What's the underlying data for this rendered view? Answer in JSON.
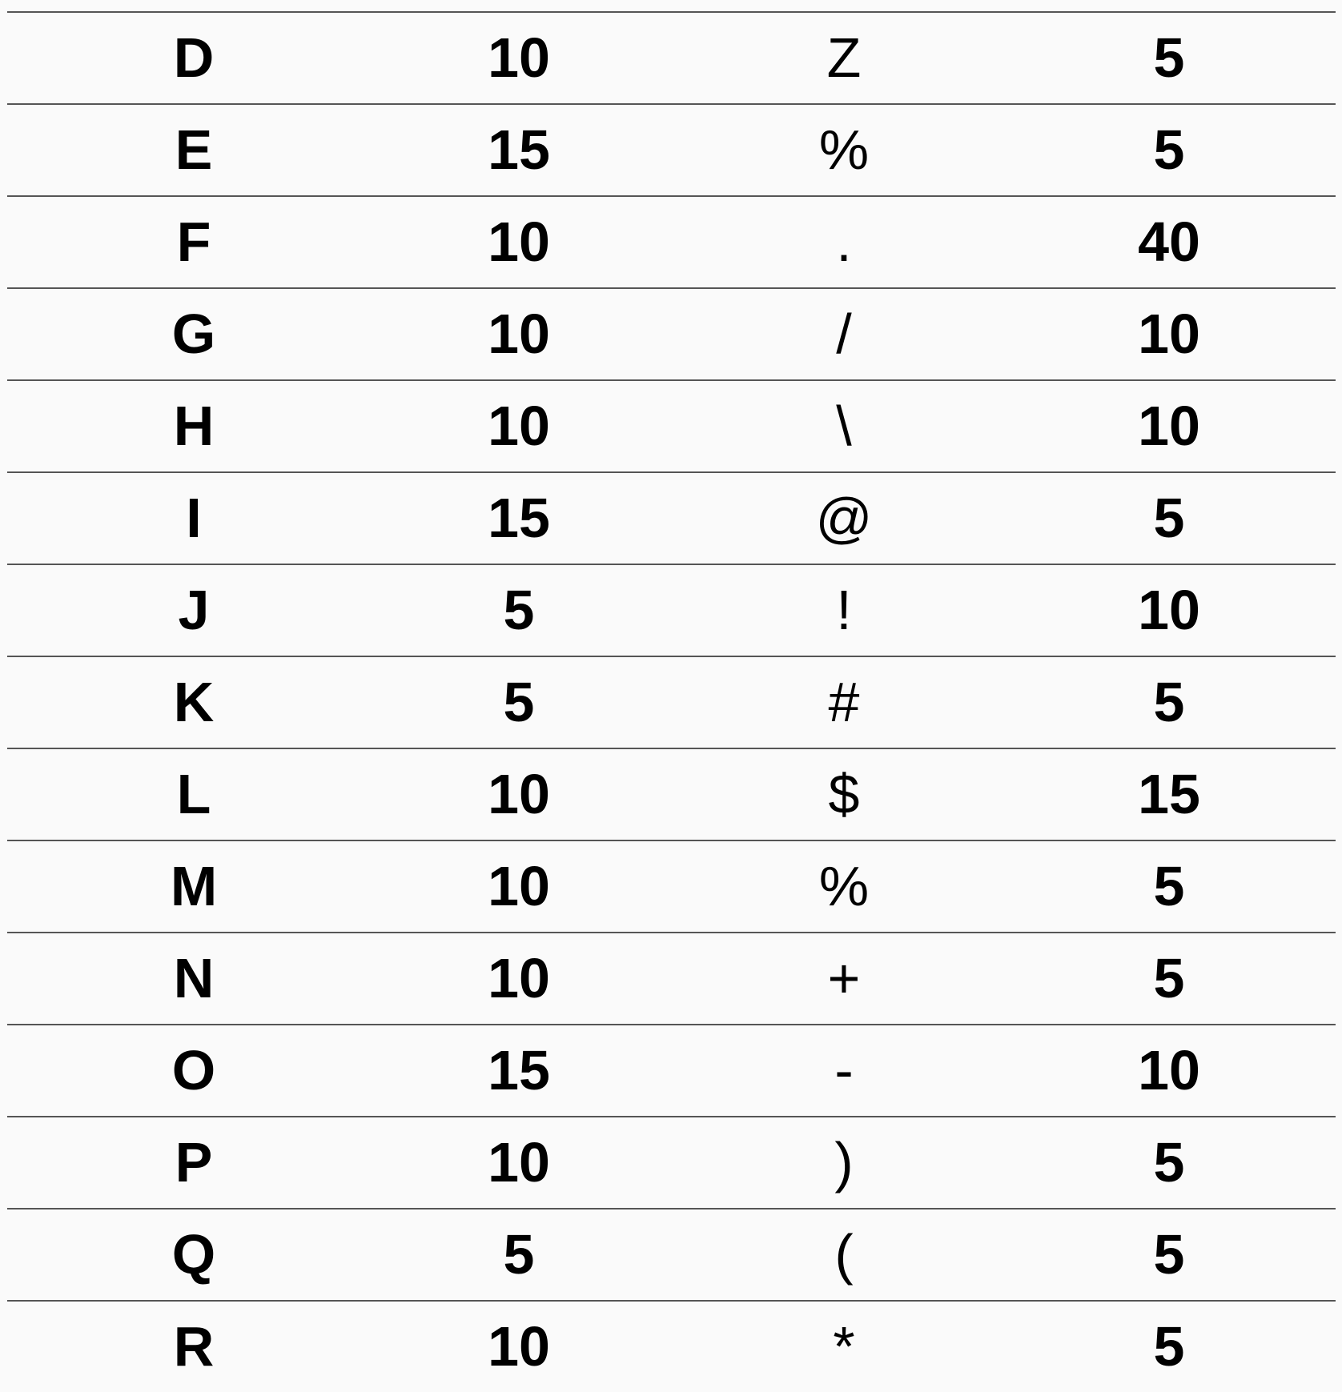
{
  "table": {
    "rows": [
      [
        "D",
        "10",
        "Z",
        "5"
      ],
      [
        "E",
        "15",
        "%",
        "5"
      ],
      [
        "F",
        "10",
        ".",
        "40"
      ],
      [
        "G",
        "10",
        "/",
        "10"
      ],
      [
        "H",
        "10",
        "\\",
        "10"
      ],
      [
        "I",
        "15",
        "@",
        "5"
      ],
      [
        "J",
        "5",
        "!",
        "10"
      ],
      [
        "K",
        "5",
        "#",
        "5"
      ],
      [
        "L",
        "10",
        "$",
        "15"
      ],
      [
        "M",
        "10",
        "%",
        "5"
      ],
      [
        "N",
        "10",
        "+",
        "5"
      ],
      [
        "O",
        "15",
        "-",
        "10"
      ],
      [
        "P",
        "10",
        ")",
        "5"
      ],
      [
        "Q",
        "5",
        "(",
        "5"
      ],
      [
        "R",
        "10",
        "*",
        "5"
      ]
    ]
  }
}
